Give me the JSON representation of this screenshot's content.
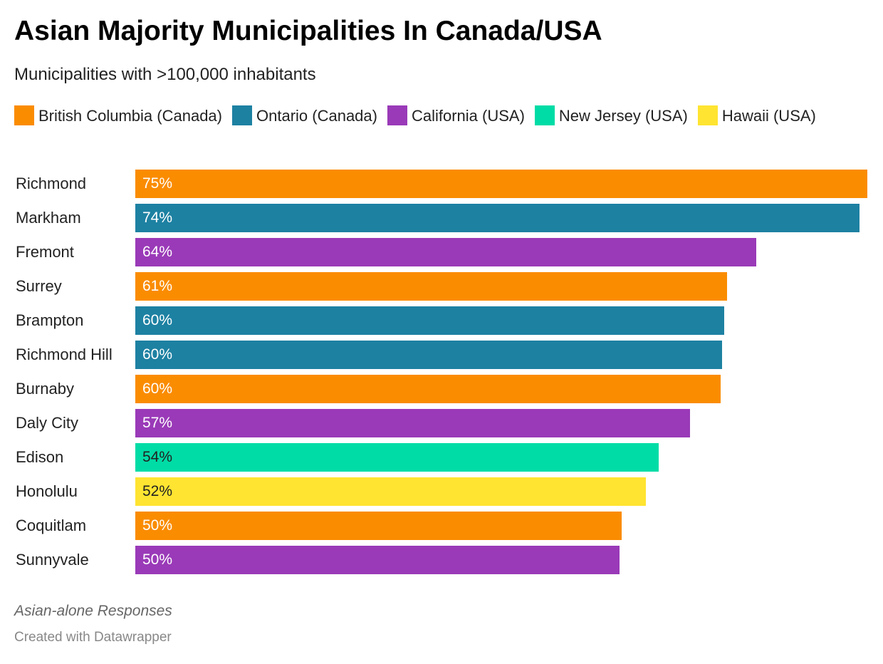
{
  "chart_data": {
    "type": "bar",
    "orientation": "horizontal",
    "title": "Asian Majority Municipalities In Canada/USA",
    "subtitle": "Municipalities with >100,000 inhabitants",
    "legend": [
      {
        "name": "British Columbia (Canada)",
        "color": "#fa8c00"
      },
      {
        "name": "Ontario (Canada)",
        "color": "#1d81a2"
      },
      {
        "name": "California (USA)",
        "color": "#9a3ab8"
      },
      {
        "name": "New Jersey (USA)",
        "color": "#00dca6"
      },
      {
        "name": "Hawaii (USA)",
        "color": "#ffe431"
      }
    ],
    "legend_placement": "top",
    "categories": [
      "Richmond",
      "Markham",
      "Fremont",
      "Surrey",
      "Brampton",
      "Richmond Hill",
      "Burnaby",
      "Daly City",
      "Edison",
      "Honolulu",
      "Coquitlam",
      "Sunnyvale"
    ],
    "values": [
      75.0,
      74.2,
      63.6,
      60.6,
      60.3,
      60.1,
      60.0,
      56.8,
      53.6,
      52.3,
      49.8,
      49.6
    ],
    "labels": [
      "75%",
      "74%",
      "64%",
      "61%",
      "60%",
      "60%",
      "60%",
      "57%",
      "54%",
      "52%",
      "50%",
      "50%"
    ],
    "groups": [
      0,
      1,
      2,
      0,
      1,
      1,
      0,
      2,
      3,
      4,
      0,
      2
    ],
    "xlim": [
      0,
      75
    ],
    "grid": false,
    "note": "Asian-alone Responses",
    "credit": "Created with Datawrapper"
  }
}
